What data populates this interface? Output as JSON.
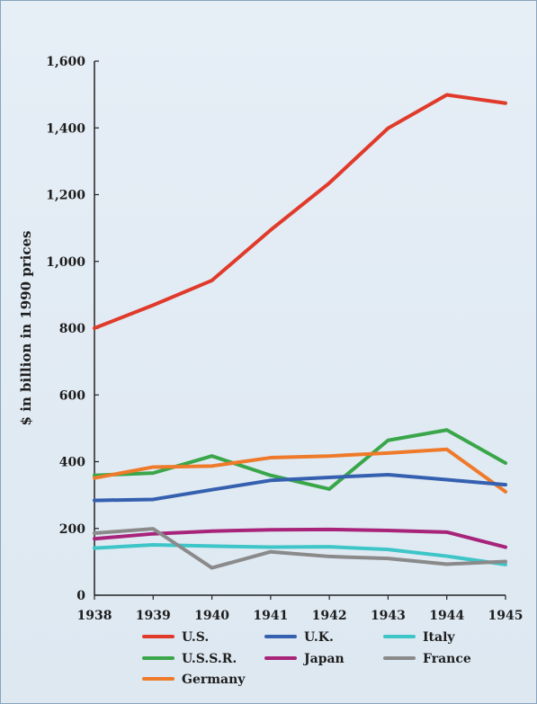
{
  "chart_data": {
    "type": "line",
    "ylabel": "$ in billion in 1990 prices",
    "xlabel": "",
    "x": [
      "1938",
      "1939",
      "1940",
      "1941",
      "1942",
      "1943",
      "1944",
      "1945"
    ],
    "ylim": [
      0,
      1600
    ],
    "yticks": [
      0,
      200,
      400,
      600,
      800,
      1000,
      1200,
      1400,
      1600
    ],
    "ytick_labels": [
      "0",
      "200",
      "400",
      "600",
      "800",
      "1,000",
      "1,200",
      "1,400",
      "1,600"
    ],
    "grid": false,
    "legend_position": "bottom",
    "series": [
      {
        "name": "U.S.",
        "color": "#e03a2a",
        "values": [
          800,
          869,
          943,
          1094,
          1235,
          1399,
          1499,
          1474
        ]
      },
      {
        "name": "U.S.S.R.",
        "color": "#3aa64a",
        "values": [
          359,
          366,
          417,
          359,
          318,
          464,
          495,
          396
        ]
      },
      {
        "name": "Germany",
        "color": "#ee7a2a",
        "values": [
          351,
          384,
          387,
          412,
          417,
          426,
          437,
          310
        ]
      },
      {
        "name": "U.K.",
        "color": "#3560b0",
        "values": [
          284,
          287,
          316,
          344,
          353,
          361,
          346,
          331
        ]
      },
      {
        "name": "Japan",
        "color": "#a8247a",
        "values": [
          169,
          184,
          192,
          196,
          197,
          194,
          189,
          144
        ]
      },
      {
        "name": "Italy",
        "color": "#3ec5c8",
        "values": [
          141,
          151,
          147,
          144,
          145,
          137,
          117,
          92
        ]
      },
      {
        "name": "France",
        "color": "#8a8a8a",
        "values": [
          186,
          199,
          82,
          130,
          116,
          110,
          93,
          101
        ]
      }
    ],
    "legend_layout": [
      [
        "U.S.",
        "U.K.",
        "Italy"
      ],
      [
        "U.S.S.R.",
        "Japan",
        "France"
      ],
      [
        "Germany"
      ]
    ]
  }
}
